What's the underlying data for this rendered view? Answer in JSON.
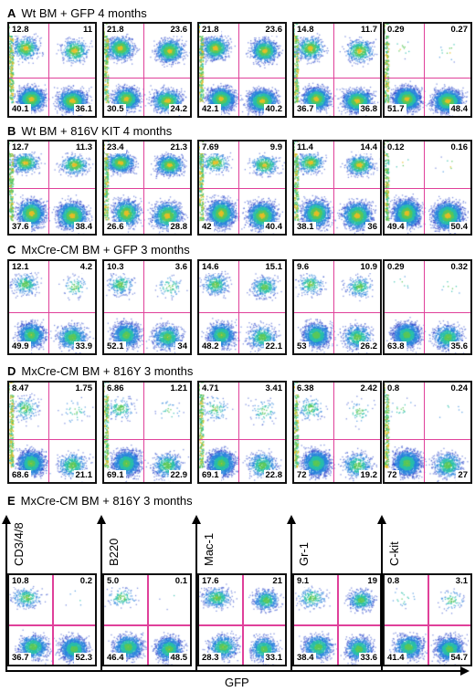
{
  "chart_data": [
    {
      "type": "scatter",
      "letter": "A",
      "title": "Wt BM + GFP 4 months",
      "plots": [
        {
          "ul": "12.8",
          "ur": "11",
          "ll": "40.1",
          "lr": "36.1"
        },
        {
          "ul": "21.8",
          "ur": "23.6",
          "ll": "30.5",
          "lr": "24.2"
        },
        {
          "ul": "21.8",
          "ur": "23.6",
          "ll": "42.1",
          "lr": "40.2"
        },
        {
          "ul": "14.8",
          "ur": "11.7",
          "ll": "36.7",
          "lr": "36.8"
        },
        {
          "ul": "0.29",
          "ur": "0.27",
          "ll": "51.7",
          "lr": "48.4"
        }
      ]
    },
    {
      "type": "scatter",
      "letter": "B",
      "title": "Wt BM + 816V KIT 4 months",
      "plots": [
        {
          "ul": "12.7",
          "ur": "11.3",
          "ll": "37.6",
          "lr": "38.4"
        },
        {
          "ul": "23.4",
          "ur": "21.3",
          "ll": "26.6",
          "lr": "28.8"
        },
        {
          "ul": "7.69",
          "ur": "9.9",
          "ll": "42",
          "lr": "40.4"
        },
        {
          "ul": "11.4",
          "ur": "14.4",
          "ll": "38.1",
          "lr": "36"
        },
        {
          "ul": "0.12",
          "ur": "0.16",
          "ll": "49.4",
          "lr": "50.4"
        }
      ]
    },
    {
      "type": "scatter",
      "letter": "C",
      "title": "MxCre-CM BM + GFP 3 months",
      "plots": [
        {
          "ul": "12.1",
          "ur": "4.2",
          "ll": "49.9",
          "lr": "33.9"
        },
        {
          "ul": "10.3",
          "ur": "3.6",
          "ll": "52.1",
          "lr": "34"
        },
        {
          "ul": "14.6",
          "ur": "15.1",
          "ll": "48.2",
          "lr": "22.1"
        },
        {
          "ul": "9.6",
          "ur": "10.9",
          "ll": "53",
          "lr": "26.2"
        },
        {
          "ul": "0.29",
          "ur": "0.32",
          "ll": "63.8",
          "lr": "35.6"
        }
      ]
    },
    {
      "type": "scatter",
      "letter": "D",
      "title": "MxCre-CM BM + 816Y 3 months",
      "plots": [
        {
          "ul": "8.47",
          "ur": "1.75",
          "ll": "68.6",
          "lr": "21.1"
        },
        {
          "ul": "6.86",
          "ur": "1.21",
          "ll": "69.1",
          "lr": "22.9"
        },
        {
          "ul": "4.71",
          "ur": "3.41",
          "ll": "69.1",
          "lr": "22.8"
        },
        {
          "ul": "6.38",
          "ur": "2.42",
          "ll": "72",
          "lr": "19.2"
        },
        {
          "ul": "0.8",
          "ur": "0.24",
          "ll": "72",
          "lr": "27"
        }
      ]
    },
    {
      "type": "scatter",
      "letter": "E",
      "title": "MxCre-CM BM + 816Y 3 months",
      "xlabel": "GFP",
      "ylabels": [
        "CD3/4/8",
        "B220",
        "Mac-1",
        "Gr-1",
        "C-kit"
      ],
      "plots": [
        {
          "ul": "10.8",
          "ur": "0.2",
          "ll": "36.7",
          "lr": "52.3"
        },
        {
          "ul": "5.0",
          "ur": "0.1",
          "ll": "46.4",
          "lr": "48.5"
        },
        {
          "ul": "17.6",
          "ur": "21",
          "ll": "28.3",
          "lr": "33.1"
        },
        {
          "ul": "9.1",
          "ur": "19",
          "ll": "38.4",
          "lr": "33.6"
        },
        {
          "ul": "0.8",
          "ur": "3.1",
          "ll": "41.4",
          "lr": "54.7"
        }
      ]
    }
  ]
}
